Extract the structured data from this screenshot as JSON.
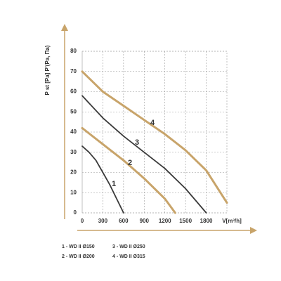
{
  "chart_data": {
    "type": "line",
    "y_label": "P st [Pa] P'(Pa, Па)",
    "x_label": "V[m³/h]",
    "xlim": [
      0,
      2100
    ],
    "xticks": [
      0,
      300,
      600,
      900,
      1200,
      1500,
      1800
    ],
    "ylim": [
      0,
      80
    ],
    "yticks": [
      0,
      10,
      20,
      30,
      40,
      50,
      60,
      70,
      80
    ],
    "grid": true,
    "series": [
      {
        "name": "1 - WD II Ø150",
        "label": "1",
        "color": "#3a3a3a",
        "x": [
          0,
          100,
          200,
          300,
          400,
          500,
          600
        ],
        "values": [
          33,
          30,
          26,
          20,
          14,
          7,
          0
        ]
      },
      {
        "name": "2 - WD II Ø200",
        "label": "2",
        "color": "#c8a46a",
        "x": [
          0,
          300,
          600,
          900,
          1200,
          1350
        ],
        "values": [
          42,
          34,
          26,
          17,
          7,
          0
        ]
      },
      {
        "name": "3 - WD II Ø250",
        "label": "3",
        "color": "#3a3a3a",
        "x": [
          0,
          300,
          600,
          900,
          1200,
          1500,
          1800
        ],
        "values": [
          58,
          47,
          38,
          30,
          22,
          12,
          0
        ]
      },
      {
        "name": "4 - WD II Ø315",
        "label": "4",
        "color": "#c8a46a",
        "x": [
          0,
          300,
          600,
          900,
          1200,
          1500,
          1800,
          2100
        ],
        "values": [
          70,
          60,
          53,
          46,
          39,
          31,
          21,
          5
        ]
      }
    ]
  }
}
